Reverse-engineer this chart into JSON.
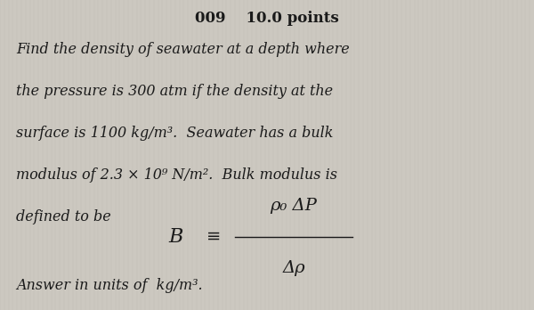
{
  "background_color": "#ccc8c0",
  "title_number": "009",
  "title_points": "10.0 points",
  "title_fontsize": 12,
  "body_text_lines": [
    "Find the density of seawater at a depth where",
    "the pressure is 300 atm if the density at the",
    "surface is 1100 kg/m³.  Seawater has a bulk",
    "modulus of 2.3 × 10⁹ N/m².  Bulk modulus is",
    "defined to be"
  ],
  "body_fontsize": 11.5,
  "formula_B": "B",
  "formula_equiv": "≡",
  "formula_numerator": "ρ₀ ΔP",
  "formula_denominator": "Δρ",
  "formula_fontsize": 13,
  "footer_text": "Answer in units of  kg/m³.",
  "footer_fontsize": 11.5,
  "text_color": "#1a1a1a",
  "line_color": "#1a1a1a"
}
